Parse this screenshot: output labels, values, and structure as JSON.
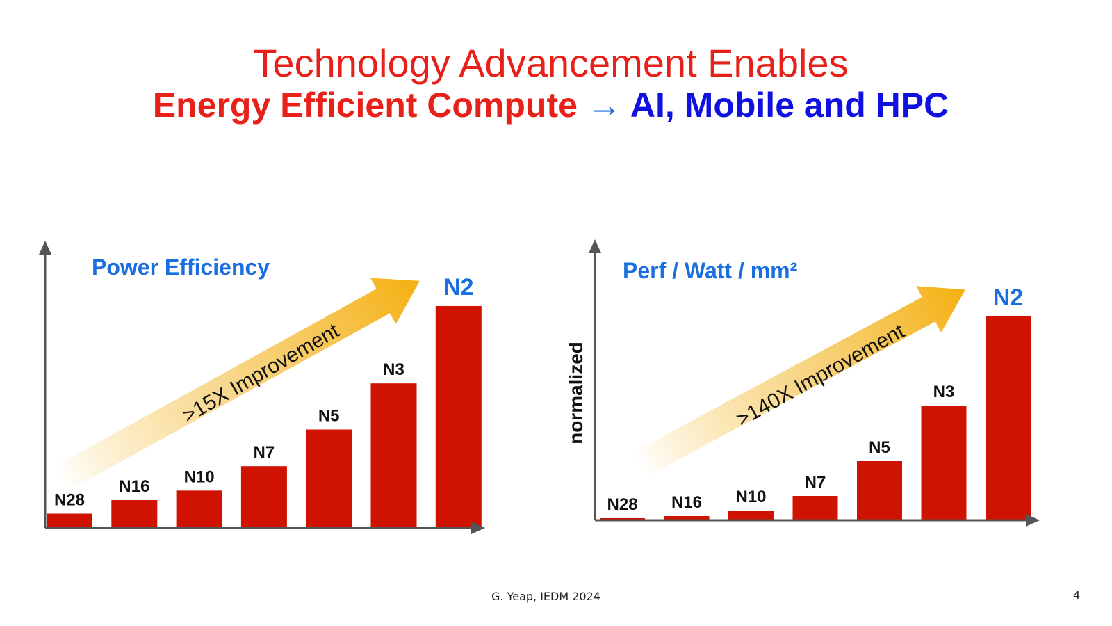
{
  "title_line1": "Technology Advancement Enables",
  "title_line2_red": "Energy Efficient Compute",
  "title_arrow": "→",
  "title_line2_blue": "AI, Mobile and HPC",
  "footer": "G. Yeap, IEDM 2024",
  "page_number": "4",
  "colors": {
    "bar": "#d01200",
    "title_red": "#e8201a",
    "title_blue": "#1010e0",
    "chart_title": "#1a6fe0",
    "arrow": "#f5b820"
  },
  "chart_data": [
    {
      "type": "bar",
      "title": "Power Efficiency",
      "ylabel": "",
      "annotation": ">15X Improvement",
      "categories": [
        "N28",
        "N16",
        "N10",
        "N7",
        "N5",
        "N3",
        "N2"
      ],
      "values": [
        1,
        2,
        2.7,
        4.5,
        7.2,
        10.6,
        16.3
      ],
      "ylim": [
        0,
        20.5
      ],
      "grid": false,
      "highlight_category": "N2"
    },
    {
      "type": "bar",
      "title": "Perf / Watt / mm²",
      "ylabel": "normalized",
      "annotation": ">140X Improvement",
      "categories": [
        "N28",
        "N16",
        "N10",
        "N7",
        "N5",
        "N3",
        "N2"
      ],
      "values": [
        1,
        2.5,
        6.5,
        17,
        42,
        82,
        146
      ],
      "ylim": [
        0,
        200
      ],
      "grid": false,
      "highlight_category": "N2"
    }
  ]
}
